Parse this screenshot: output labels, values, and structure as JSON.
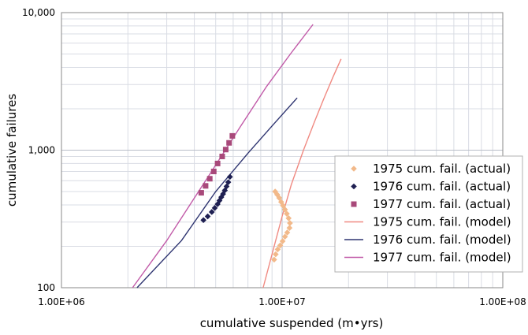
{
  "chart_data": {
    "type": "scatter",
    "xlabel": "cumulative suspended (m•yrs)",
    "ylabel": "cumulative failures",
    "x_scale": "log",
    "y_scale": "log",
    "xlim": [
      1000000,
      100000000
    ],
    "ylim": [
      100,
      10000
    ],
    "x_tick_labels": [
      "1.00E+06",
      "1.00E+07",
      "1.00E+08"
    ],
    "y_tick_labels": [
      "100",
      "1,000",
      "10,000"
    ],
    "grid": true,
    "legend_position": "bottom-right",
    "series": [
      {
        "name": "1975 cum. fail. (actual)",
        "kind": "points",
        "marker": "diamond",
        "color": "#f2b98a",
        "x": [
          9300000,
          9500000,
          9700000,
          9900000,
          10100000,
          10300000,
          10500000,
          10700000,
          10850000,
          10800000,
          10550000,
          10300000,
          10050000,
          9800000,
          9550000,
          9350000,
          9200000
        ],
        "y": [
          500,
          475,
          450,
          420,
          395,
          370,
          345,
          320,
          295,
          272,
          252,
          235,
          218,
          203,
          190,
          175,
          160
        ]
      },
      {
        "name": "1976 cum. fail. (actual)",
        "kind": "points",
        "marker": "diamond",
        "color": "#1f2052",
        "x": [
          4400000,
          4600000,
          4800000,
          4950000,
          5100000,
          5200000,
          5300000,
          5400000,
          5500000,
          5600000,
          5700000,
          5800000
        ],
        "y": [
          310,
          330,
          355,
          380,
          405,
          430,
          455,
          480,
          510,
          545,
          585,
          640
        ]
      },
      {
        "name": "1977 cum. fail. (actual)",
        "kind": "points",
        "marker": "square",
        "color": "#a8497a",
        "x": [
          4300000,
          4500000,
          4700000,
          4900000,
          5100000,
          5350000,
          5550000,
          5750000,
          5950000
        ],
        "y": [
          490,
          550,
          620,
          700,
          800,
          900,
          1010,
          1130,
          1270
        ]
      },
      {
        "name": "1975 cum. fail. (model)",
        "kind": "line",
        "color": "#f08a82",
        "x": [
          8200000,
          9000000,
          10000000,
          11000000,
          12500000,
          14000000,
          15500000,
          17000000,
          18500000
        ],
        "y": [
          100,
          175,
          330,
          560,
          1000,
          1600,
          2400,
          3400,
          4600
        ]
      },
      {
        "name": "1976 cum. fail. (model)",
        "kind": "line",
        "color": "#2e3470",
        "x": [
          2200000,
          3500000,
          5000000,
          7000000,
          9000000,
          11700000
        ],
        "y": [
          100,
          220,
          500,
          950,
          1500,
          2400
        ]
      },
      {
        "name": "1977 cum. fail. (model)",
        "kind": "line",
        "color": "#c15aa8",
        "x": [
          2100000,
          3000000,
          4500000,
          6500000,
          8500000,
          11000000,
          13800000
        ],
        "y": [
          100,
          220,
          600,
          1500,
          2900,
          5100,
          8200
        ]
      }
    ]
  }
}
